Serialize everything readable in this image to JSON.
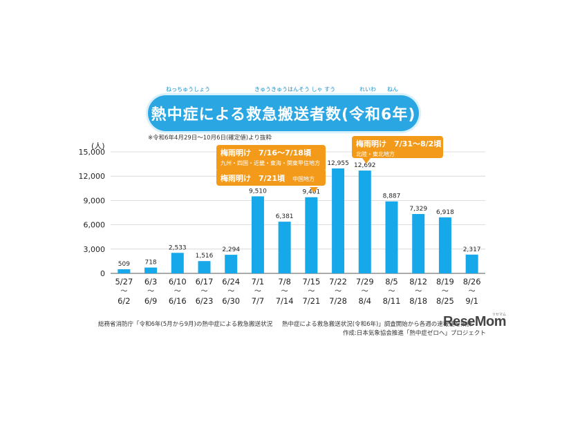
{
  "title": {
    "main": "熱中症による救急搬送者数(令和6年)",
    "ruby": [
      "ねっちゅうしょう",
      "きゅうきゅうはんそう しゃ すう",
      "れいわ",
      "ねん"
    ]
  },
  "note": "※令和6年4月29日～10月6日(確定値)より抜粋",
  "unit_label": "(人)",
  "callouts": [
    {
      "main": "梅雨明け　7/16～7/18頃",
      "sub": "九州・四国・近畿・東海・関東甲信地方"
    },
    {
      "main": "梅雨明け　7/21頃",
      "sub": "中国地方"
    },
    {
      "main": "梅雨明け　7/31～8/2頃",
      "sub": "北陸・東北地方"
    }
  ],
  "footer": {
    "line1a": "総務省消防庁「令和6年(5月から9月)の熱中症による救急搬送状況",
    "line1b": "熱中症による救急搬送状況(令和6年)」調査開始から各週の速報値を集計",
    "line2": "作成:日本気象協会推進「熱中症ゼロへ」プロジェクト"
  },
  "logo": {
    "text": "ReseMom",
    "ruby": "リセマム"
  },
  "colors": {
    "bar": "#17a8ea",
    "title_bg": "#2aa7e3",
    "callout": "#f39a1a",
    "grid": "#d0d0d0"
  },
  "chart_data": {
    "type": "bar",
    "title": "熱中症による救急搬送者数(令和6年)",
    "ylabel": "(人)",
    "xlabel": "",
    "ylim": [
      0,
      15000
    ],
    "yticks": [
      0,
      3000,
      6000,
      9000,
      12000,
      15000
    ],
    "ytick_labels": [
      "0",
      "3,000",
      "6,000",
      "9,000",
      "12,000",
      "15,000"
    ],
    "grid": true,
    "categories": [
      {
        "from": "5/27",
        "to": "6/2"
      },
      {
        "from": "6/3",
        "to": "6/9"
      },
      {
        "from": "6/10",
        "to": "6/16"
      },
      {
        "from": "6/17",
        "to": "6/23"
      },
      {
        "from": "6/24",
        "to": "6/30"
      },
      {
        "from": "7/1",
        "to": "7/7"
      },
      {
        "from": "7/8",
        "to": "7/14"
      },
      {
        "from": "7/15",
        "to": "7/21"
      },
      {
        "from": "7/22",
        "to": "7/28"
      },
      {
        "from": "7/29",
        "to": "8/4"
      },
      {
        "from": "8/5",
        "to": "8/11"
      },
      {
        "from": "8/12",
        "to": "8/18"
      },
      {
        "from": "8/19",
        "to": "8/25"
      },
      {
        "from": "8/26",
        "to": "9/1"
      }
    ],
    "range_mark": "～",
    "values": [
      509,
      718,
      2533,
      1516,
      2294,
      9510,
      6381,
      9401,
      12955,
      12692,
      8887,
      7329,
      6918,
      2317
    ],
    "value_labels": [
      "509",
      "718",
      "2,533",
      "1,516",
      "2,294",
      "9,510",
      "6,381",
      "9,401",
      "12,955",
      "12,692",
      "8,887",
      "7,329",
      "6,918",
      "2,317"
    ]
  }
}
